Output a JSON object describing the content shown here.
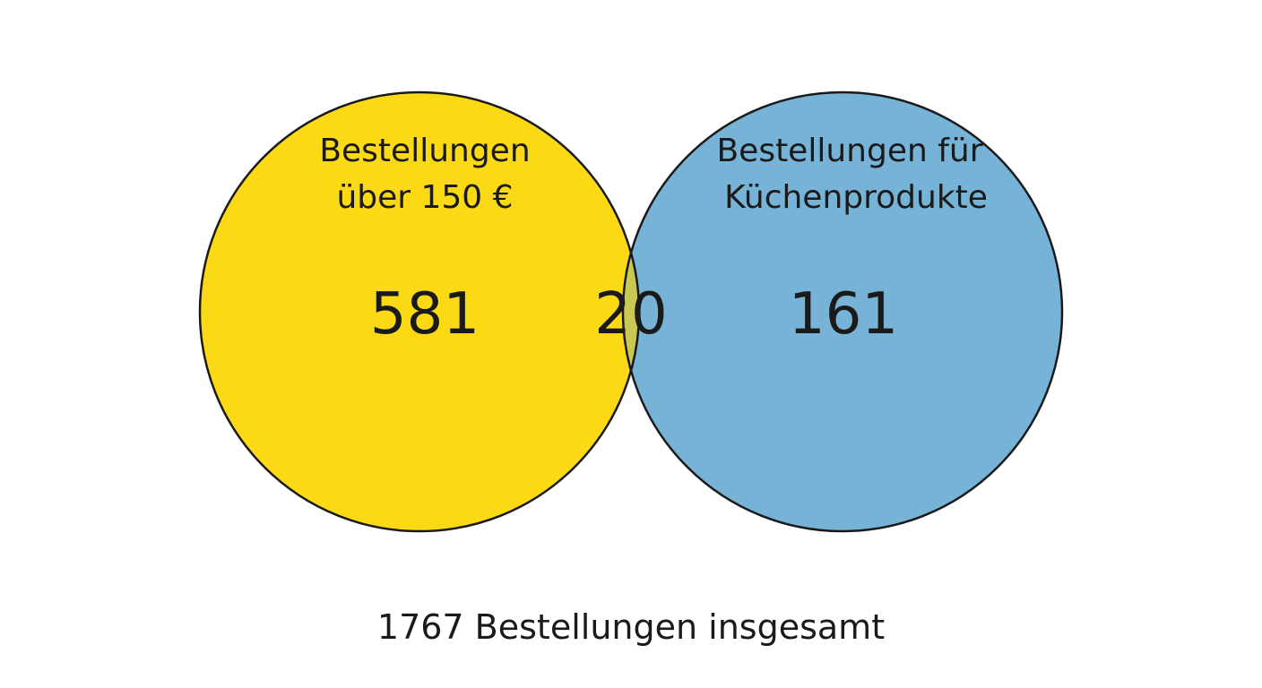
{
  "venn": {
    "left_set": {
      "label_line1": "Bestellungen",
      "label_line2": "über 150 €",
      "count": "581",
      "color": "#fbd914"
    },
    "right_set": {
      "label_line1": "Bestellungen für",
      "label_line2": "Küchenprodukte",
      "count": "161",
      "color": "#76b3d7"
    },
    "intersection": {
      "count": "20",
      "color": "#c9c853"
    },
    "total": "1767 Bestellungen insgesamt"
  }
}
